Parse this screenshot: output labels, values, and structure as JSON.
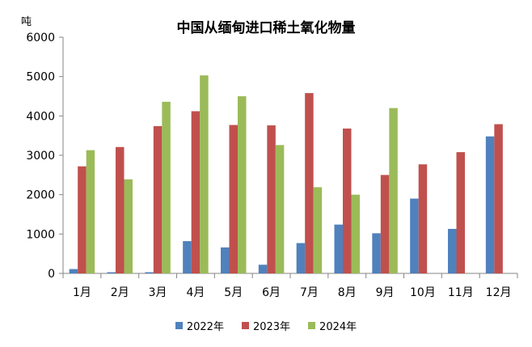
{
  "chart_data": {
    "type": "bar",
    "title": "中国从缅甸进口稀土氧化物量",
    "ylabel": "吨",
    "xlabel": "",
    "ylim": [
      0,
      6000
    ],
    "yticks": [
      "0",
      "1000",
      "2000",
      "3000",
      "4000",
      "5000",
      "6000"
    ],
    "categories": [
      "1月",
      "2月",
      "3月",
      "4月",
      "5月",
      "6月",
      "7月",
      "8月",
      "9月",
      "10月",
      "11月",
      "12月"
    ],
    "grid": false,
    "legend_position": "bottom",
    "series": [
      {
        "name": "2022年",
        "color": "#4f81bd",
        "values": [
          110,
          30,
          30,
          820,
          660,
          220,
          770,
          1240,
          1020,
          1900,
          1130,
          3480
        ]
      },
      {
        "name": "2023年",
        "color": "#c0504d",
        "values": [
          2720,
          3210,
          3740,
          4120,
          3770,
          3760,
          4580,
          3680,
          2500,
          2770,
          3080,
          3790
        ]
      },
      {
        "name": "2024年",
        "color": "#9bbb59",
        "values": [
          3130,
          2390,
          4360,
          5030,
          4500,
          3260,
          2190,
          2000,
          4200,
          null,
          null,
          null
        ]
      }
    ]
  }
}
